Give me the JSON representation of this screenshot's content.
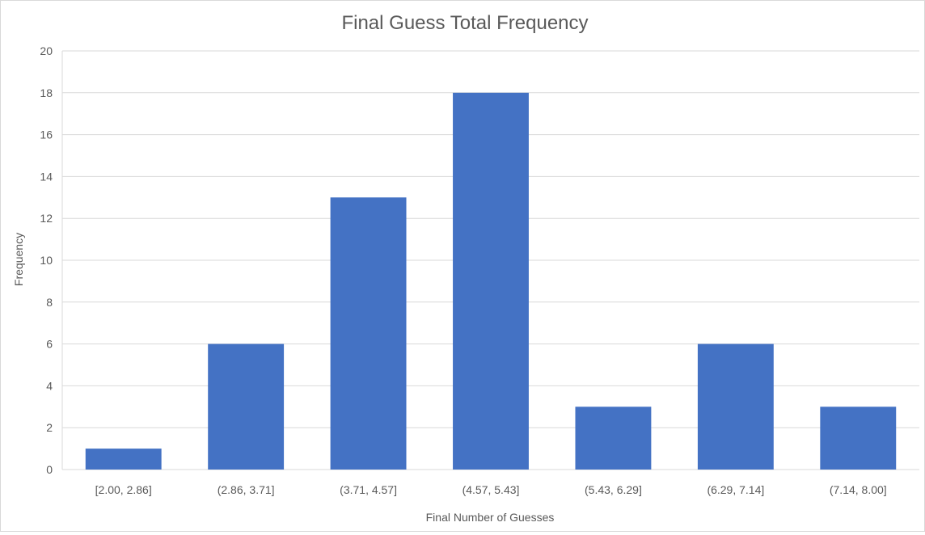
{
  "chart_data": {
    "type": "bar",
    "title": "Final Guess Total Frequency",
    "xlabel": "Final Number of Guesses",
    "ylabel": "Frequency",
    "categories": [
      "[2.00, 2.86]",
      "(2.86, 3.71]",
      "(3.71, 4.57]",
      "(4.57, 5.43]",
      "(5.43, 6.29]",
      "(6.29, 7.14]",
      "(7.14, 8.00]"
    ],
    "values": [
      1,
      6,
      13,
      18,
      3,
      6,
      3
    ],
    "ylim": [
      0,
      20
    ],
    "yticks": [
      0,
      2,
      4,
      6,
      8,
      10,
      12,
      14,
      16,
      18,
      20
    ],
    "grid": true,
    "legend": "none",
    "colors": {
      "bar": "#4472c4",
      "grid": "#d9d9d9",
      "title": "#595959",
      "text": "#595959"
    }
  }
}
